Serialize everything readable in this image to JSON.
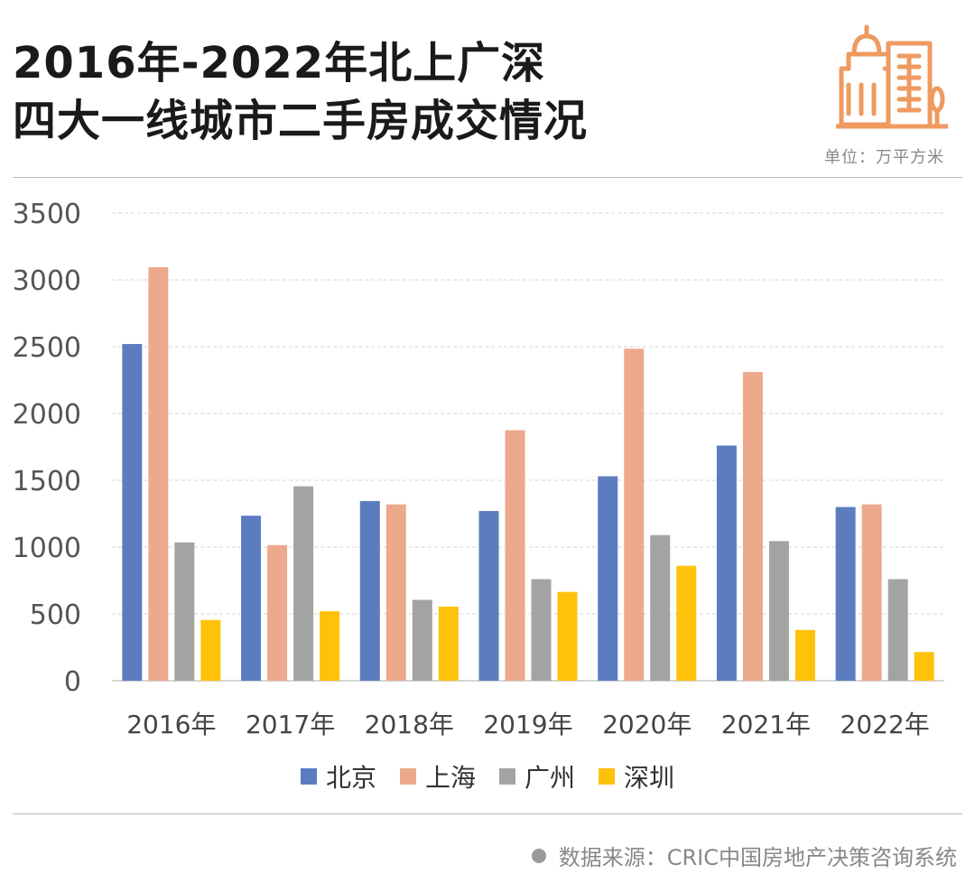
{
  "header": {
    "title_line1": "2016年-2022年北上广深",
    "title_line2": "四大一线城市二手房成交情况",
    "unit": "单位：万平方米"
  },
  "colors": {
    "beijing": "#5b7dc0",
    "shanghai": "#eda98b",
    "guangzhou": "#a3a3a3",
    "shenzhen": "#ffc20a",
    "icon": "#ee9a60"
  },
  "icon": "building-icon",
  "chart_data": {
    "type": "bar",
    "categories": [
      "2016年",
      "2017年",
      "2018年",
      "2019年",
      "2020年",
      "2021年",
      "2022年"
    ],
    "series": [
      {
        "name": "北京",
        "color": "#5b7dc0",
        "values": [
          2520,
          1235,
          1345,
          1270,
          1530,
          1760,
          1300
        ]
      },
      {
        "name": "上海",
        "color": "#eda98b",
        "values": [
          3095,
          1015,
          1320,
          1875,
          2485,
          2310,
          1320
        ]
      },
      {
        "name": "广州",
        "color": "#a3a3a3",
        "values": [
          1035,
          1455,
          605,
          760,
          1090,
          1045,
          760
        ]
      },
      {
        "name": "深圳",
        "color": "#ffc20a",
        "values": [
          455,
          520,
          555,
          665,
          860,
          380,
          215
        ]
      }
    ],
    "yticks": [
      "0",
      "500",
      "1000",
      "1500",
      "2000",
      "2500",
      "3000",
      "3500"
    ],
    "ylim": [
      0,
      3500
    ],
    "grid": true,
    "legend_position": "bottom"
  },
  "footer": {
    "source": "数据来源：CRIC中国房地产决策咨询系统"
  }
}
